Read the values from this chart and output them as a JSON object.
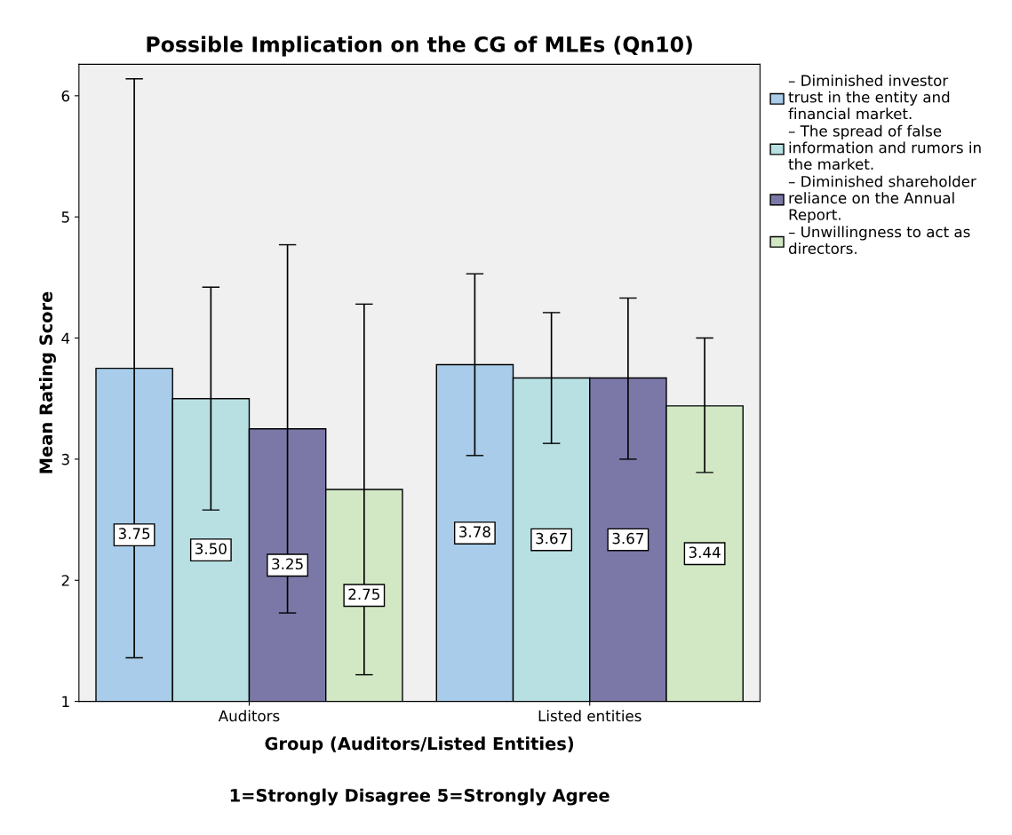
{
  "chart_data": {
    "type": "bar",
    "title": "Possible Implication on the CG of MLEs (Qn10)",
    "xlabel": "Group (Auditors/Listed Entities)",
    "ylabel": "Mean Rating Score",
    "annotations": [
      "1=Strongly Disagree 5=Strongly Agree"
    ],
    "categories": [
      "Auditors",
      "Listed entities"
    ],
    "series": [
      {
        "name": "– Diminished investor trust in the entity and financial market.",
        "color": "#a8cce9",
        "values": [
          3.75,
          3.78
        ],
        "value_labels": [
          "3.75",
          "3.78"
        ],
        "errors": [
          [
            1.36,
            6.14
          ],
          [
            3.03,
            4.53
          ]
        ]
      },
      {
        "name": "– The spread of false information and rumors in the market.",
        "color": "#b8e0e3",
        "values": [
          3.5,
          3.67
        ],
        "value_labels": [
          "3.50",
          "3.67"
        ],
        "errors": [
          [
            2.58,
            4.42
          ],
          [
            3.13,
            4.21
          ]
        ]
      },
      {
        "name": "– Diminished shareholder reliance on the Annual Report.",
        "color": "#7b78a8",
        "values": [
          3.25,
          3.67
        ],
        "value_labels": [
          "3.25",
          "3.67"
        ],
        "errors": [
          [
            1.73,
            4.77
          ],
          [
            3.0,
            4.33
          ]
        ]
      },
      {
        "name": "– Unwillingness to act as directors.",
        "color": "#d2e8c5",
        "values": [
          2.75,
          3.44
        ],
        "value_labels": [
          "2.75",
          "3.44"
        ],
        "errors": [
          [
            1.22,
            4.28
          ],
          [
            2.89,
            4.0
          ]
        ]
      }
    ],
    "ylim": [
      1,
      6.26
    ],
    "yticks": [
      1,
      2,
      3,
      4,
      5,
      6
    ],
    "grid": false,
    "legend": "top right"
  }
}
